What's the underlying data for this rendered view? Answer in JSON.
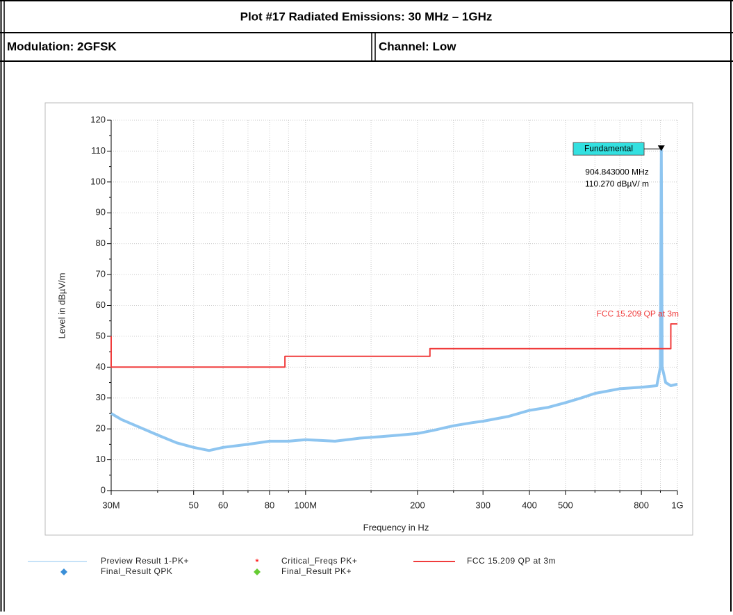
{
  "header": {
    "title": "Plot #17 Radiated Emissions: 30 MHz – 1GHz",
    "modulation": "Modulation: 2GFSK",
    "channel": "Channel: Low"
  },
  "chart_data": {
    "type": "line",
    "xlabel": "Frequency in Hz",
    "ylabel": "Level in dBµV/m",
    "log_x": true,
    "grid": true,
    "xlim": [
      30000000,
      1000000000
    ],
    "xticks": [
      {
        "value": 30000000,
        "label": "30M"
      },
      {
        "value": 50000000,
        "label": "50"
      },
      {
        "value": 60000000,
        "label": "60"
      },
      {
        "value": 80000000,
        "label": "80"
      },
      {
        "value": 100000000,
        "label": "100M"
      },
      {
        "value": 200000000,
        "label": "200"
      },
      {
        "value": 300000000,
        "label": "300"
      },
      {
        "value": 400000000,
        "label": "400"
      },
      {
        "value": 500000000,
        "label": "500"
      },
      {
        "value": 800000000,
        "label": "800"
      },
      {
        "value": 1000000000,
        "label": "1G"
      }
    ],
    "xminorticks": [
      40000000,
      70000000,
      90000000,
      150000000,
      250000000,
      600000000,
      700000000,
      900000000
    ],
    "ylim": [
      0,
      120
    ],
    "yticks": [
      0,
      10,
      20,
      30,
      40,
      50,
      60,
      70,
      80,
      90,
      100,
      110,
      120
    ],
    "series": [
      {
        "name": "Preview Result 1-PK+",
        "color": "#8ec5f0",
        "style": "line",
        "x": [
          30000000,
          32000000,
          35000000,
          40000000,
          45000000,
          50000000,
          55000000,
          60000000,
          70000000,
          80000000,
          90000000,
          100000000,
          120000000,
          140000000,
          160000000,
          180000000,
          200000000,
          220000000,
          250000000,
          280000000,
          300000000,
          350000000,
          400000000,
          450000000,
          500000000,
          550000000,
          600000000,
          700000000,
          800000000,
          880000000,
          900000000,
          904843000,
          910000000,
          930000000,
          960000000,
          1000000000
        ],
        "values": [
          25,
          23,
          21,
          18,
          15.5,
          14,
          13,
          14,
          15,
          16,
          16,
          16.5,
          16,
          17,
          17.5,
          18,
          18.5,
          19.5,
          21,
          22,
          22.5,
          24,
          26,
          27,
          28.5,
          30,
          31.5,
          33,
          33.5,
          34,
          40,
          110.27,
          40,
          35,
          34,
          34.5
        ]
      },
      {
        "name": "Critical_Freqs PK+",
        "color": "#ff0000",
        "style": "asterisk",
        "x": [],
        "values": []
      },
      {
        "name": "FCC 15.209 QP at 3m",
        "color": "#f03c3c",
        "style": "line",
        "x": [
          30000000,
          30000000,
          88000000,
          88000000,
          216000000,
          216000000,
          960000000,
          960000000,
          1000000000
        ],
        "values": [
          50,
          40,
          40,
          43.5,
          43.5,
          46,
          46,
          54,
          54
        ]
      },
      {
        "name": "Final_Result QPK",
        "color": "#3a8fd8",
        "style": "diamond",
        "x": [],
        "values": []
      },
      {
        "name": "Final_Result PK+",
        "color": "#66cc33",
        "style": "diamond",
        "x": [],
        "values": []
      }
    ],
    "marker": {
      "x": 904843000,
      "y": 110.27,
      "label": "Fundamental",
      "text": [
        "904.843000 MHz",
        "110.270 dBµV/ m"
      ]
    }
  }
}
